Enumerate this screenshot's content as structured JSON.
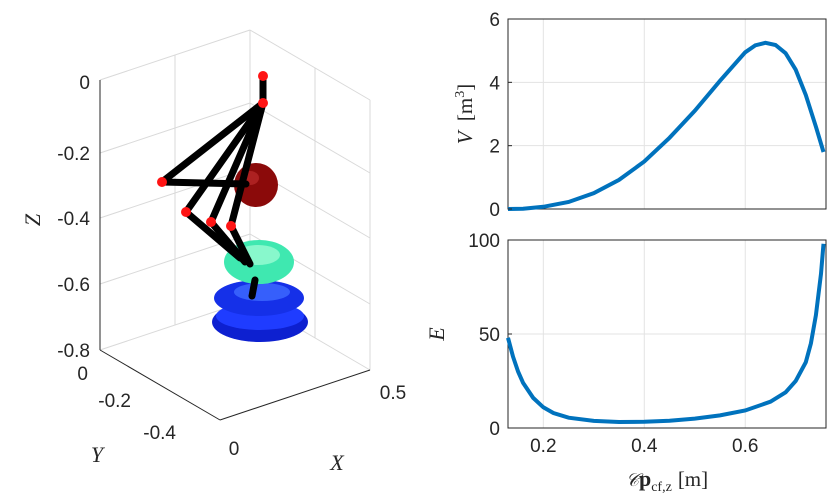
{
  "chart_data": [
    {
      "type": "3d-scene",
      "xlabel": "X",
      "ylabel": "Y",
      "zlabel": "Z",
      "x_ticks": [
        "0",
        "0.5"
      ],
      "y_ticks": [
        "0",
        "-0.2",
        "-0.4"
      ],
      "z_ticks": [
        "0",
        "-0.2",
        "-0.4",
        "-0.6",
        "-0.8"
      ],
      "zlim": [
        -0.8,
        0
      ],
      "grid": true,
      "colors": {
        "links": "#000000",
        "joints": "#ff1a1a",
        "ellipsoid_red": "#8b0000",
        "ellipsoid_green": "#4cffaa",
        "disks_blue": "#1030ff"
      }
    },
    {
      "type": "line",
      "ylabel": "V [m³]",
      "ylabel_italic": "V",
      "ylabel_unit": "[m",
      "ylabel_sup": "3",
      "ylabel_close": "]",
      "xlim": [
        0.13,
        0.76
      ],
      "ylim": [
        0,
        6
      ],
      "yticks": [
        0,
        2,
        4,
        6
      ],
      "xticks": [
        0.2,
        0.4,
        0.6
      ],
      "grid": true,
      "color": "#0072bd",
      "x": [
        0.13,
        0.16,
        0.2,
        0.25,
        0.3,
        0.35,
        0.4,
        0.45,
        0.5,
        0.55,
        0.6,
        0.62,
        0.64,
        0.66,
        0.68,
        0.7,
        0.72,
        0.74,
        0.755
      ],
      "y": [
        0.0,
        0.01,
        0.07,
        0.22,
        0.5,
        0.92,
        1.5,
        2.25,
        3.1,
        4.05,
        4.95,
        5.17,
        5.25,
        5.18,
        4.92,
        4.4,
        3.6,
        2.6,
        1.8
      ]
    },
    {
      "type": "line",
      "ylabel": "E",
      "xlabel": "𝒞p cf,z [m]",
      "xlabel_script": "𝒞",
      "xlabel_bold": "p",
      "xlabel_sub": "cf,z",
      "xlabel_unit": "[m]",
      "xlim": [
        0.13,
        0.76
      ],
      "ylim": [
        0,
        100
      ],
      "yticks": [
        0,
        50,
        100
      ],
      "xticks": [
        0.2,
        0.4,
        0.6
      ],
      "xtick_labels": [
        "0.2",
        "0.4",
        "0.6"
      ],
      "grid": true,
      "color": "#0072bd",
      "x": [
        0.13,
        0.14,
        0.15,
        0.16,
        0.18,
        0.2,
        0.22,
        0.25,
        0.3,
        0.35,
        0.4,
        0.45,
        0.5,
        0.55,
        0.6,
        0.65,
        0.68,
        0.7,
        0.72,
        0.73,
        0.74,
        0.75,
        0.755
      ],
      "y": [
        48,
        38,
        30,
        24,
        16,
        11,
        8,
        5.5,
        3.8,
        3.2,
        3.3,
        3.9,
        5.0,
        6.7,
        9.3,
        14,
        19,
        25,
        35,
        45,
        60,
        82,
        98
      ]
    }
  ]
}
